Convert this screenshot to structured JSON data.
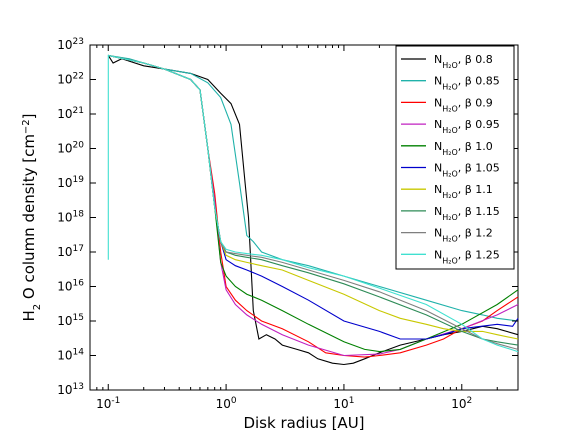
{
  "chart_data": {
    "type": "line",
    "xlabel": "Disk radius [AU]",
    "ylabel": "H2O column density [cm-2]",
    "x_scale": "log",
    "y_scale": "log",
    "xlim": [
      0.07,
      300
    ],
    "ylim": [
      10000000000000.0,
      1e+23
    ],
    "x_ticks": [
      {
        "value": 0.1,
        "base": "10",
        "exp": "-1"
      },
      {
        "value": 1,
        "base": "10",
        "exp": "0"
      },
      {
        "value": 10,
        "base": "10",
        "exp": "1"
      },
      {
        "value": 100,
        "base": "10",
        "exp": "2"
      }
    ],
    "y_ticks": [
      {
        "value": 10000000000000.0,
        "base": "10",
        "exp": "13"
      },
      {
        "value": 100000000000000.0,
        "base": "10",
        "exp": "14"
      },
      {
        "value": 1000000000000000.0,
        "base": "10",
        "exp": "15"
      },
      {
        "value": 1e+16,
        "base": "10",
        "exp": "16"
      },
      {
        "value": 1e+17,
        "base": "10",
        "exp": "17"
      },
      {
        "value": 1e+18,
        "base": "10",
        "exp": "18"
      },
      {
        "value": 1e+19,
        "base": "10",
        "exp": "19"
      },
      {
        "value": 1e+20,
        "base": "10",
        "exp": "20"
      },
      {
        "value": 1e+21,
        "base": "10",
        "exp": "21"
      },
      {
        "value": 1e+22,
        "base": "10",
        "exp": "22"
      },
      {
        "value": 1e+23,
        "base": "10",
        "exp": "23"
      }
    ],
    "legend_position": "top-right",
    "grid": false,
    "series": [
      {
        "name": "N_{H2O}, β 0.8",
        "label_main": "N",
        "label_sub": "H₂O",
        "label_tail": ", β 0.8",
        "color": "#000000",
        "x": [
          0.1,
          0.11,
          0.13,
          0.2,
          0.3,
          0.5,
          0.7,
          0.9,
          1.1,
          1.3,
          1.45,
          1.55,
          1.7,
          1.9,
          2.2,
          2.6,
          3,
          4,
          5,
          6,
          8,
          10,
          12,
          15,
          20,
          30,
          50,
          70,
          100,
          150,
          200,
          300
        ],
        "y": [
          5e+22,
          3e+22,
          4e+22,
          2.5e+22,
          2e+22,
          1.5e+22,
          1e+22,
          4e+21,
          2e+21,
          5e+20,
          1e+19,
          1e+18,
          2000000000000000.0,
          300000000000000.0,
          400000000000000.0,
          300000000000000.0,
          200000000000000.0,
          150000000000000.0,
          120000000000000.0,
          80000000000000.0,
          60000000000000.0,
          55000000000000.0,
          60000000000000.0,
          80000000000000.0,
          120000000000000.0,
          200000000000000.0,
          300000000000000.0,
          400000000000000.0,
          500000000000000.0,
          700000000000000.0,
          600000000000000.0,
          400000000000000.0
        ]
      },
      {
        "name": "N_{H2O}, β 0.85",
        "label_main": "N",
        "label_sub": "H₂O",
        "label_tail": ", β 0.85",
        "color": "#20b2aa",
        "x": [
          0.1,
          0.15,
          0.2,
          0.3,
          0.5,
          0.7,
          0.9,
          1.1,
          1.3,
          1.5,
          1.7,
          2,
          3,
          5,
          10,
          20,
          50,
          100,
          150,
          200,
          300
        ],
        "y": [
          5e+22,
          4e+22,
          3e+22,
          2e+22,
          1.5e+22,
          8e+21,
          3e+21,
          5e+20,
          1e+19,
          3e+17,
          2e+17,
          1e+17,
          6e+16,
          4e+16,
          2e+16,
          1e+16,
          4000000000000000.0,
          2000000000000000.0,
          1500000000000000.0,
          1200000000000000.0,
          1000000000000000.0
        ]
      },
      {
        "name": "N_{H2O}, β 0.9",
        "label_main": "N",
        "label_sub": "H₂O",
        "label_tail": ", β 0.9",
        "color": "#ff0000",
        "x": [
          0.1,
          0.2,
          0.3,
          0.5,
          0.6,
          0.7,
          0.8,
          0.9,
          1.0,
          1.2,
          1.5,
          2,
          3,
          5,
          7,
          10,
          15,
          20,
          30,
          50,
          70,
          100,
          150,
          200,
          300
        ],
        "y": [
          5e+22,
          3e+22,
          2e+22,
          1e+22,
          5e+21,
          1e+20,
          5e+18,
          1e+17,
          1e+16,
          4000000000000000.0,
          2000000000000000.0,
          1000000000000000.0,
          600000000000000.0,
          250000000000000.0,
          120000000000000.0,
          100000000000000.0,
          90000000000000.0,
          100000000000000.0,
          120000000000000.0,
          200000000000000.0,
          300000000000000.0,
          600000000000000.0,
          1000000000000000.0,
          2000000000000000.0,
          5000000000000000.0
        ]
      },
      {
        "name": "N_{H2O}, β 0.95",
        "label_main": "N",
        "label_sub": "H₂O",
        "label_tail": ", β 0.95",
        "color": "#c020c0",
        "x": [
          0.1,
          0.2,
          0.3,
          0.5,
          0.6,
          0.7,
          0.8,
          0.9,
          1.0,
          1.2,
          1.5,
          2,
          3,
          5,
          10,
          20,
          30,
          50,
          100,
          200,
          300
        ],
        "y": [
          5e+22,
          3e+22,
          2e+22,
          1e+22,
          5e+21,
          1e+20,
          3e+18,
          5e+16,
          8000000000000000.0,
          3000000000000000.0,
          1500000000000000.0,
          800000000000000.0,
          400000000000000.0,
          200000000000000.0,
          100000000000000.0,
          110000000000000.0,
          150000000000000.0,
          300000000000000.0,
          600000000000000.0,
          1500000000000000.0,
          3000000000000000.0
        ]
      },
      {
        "name": "N_{H2O}, β 1.0",
        "label_main": "N",
        "label_sub": "H₂O",
        "label_tail": ", β 1.0",
        "color": "#008000",
        "x": [
          0.1,
          0.2,
          0.3,
          0.5,
          0.6,
          0.7,
          0.8,
          0.9,
          1.0,
          1.2,
          1.5,
          2,
          3,
          5,
          10,
          15,
          20,
          30,
          50,
          100,
          200,
          300
        ],
        "y": [
          5e+22,
          3e+22,
          2e+22,
          1e+22,
          5e+21,
          1e+20,
          2e+18,
          5e+16,
          2e+16,
          1e+16,
          6000000000000000.0,
          4000000000000000.0,
          2000000000000000.0,
          800000000000000.0,
          250000000000000.0,
          150000000000000.0,
          130000000000000.0,
          150000000000000.0,
          300000000000000.0,
          800000000000000.0,
          3000000000000000.0,
          8000000000000000.0
        ]
      },
      {
        "name": "N_{H2O}, β 1.05",
        "label_main": "N",
        "label_sub": "H₂O",
        "label_tail": ", β 1.05",
        "color": "#0000cc",
        "x": [
          0.1,
          0.2,
          0.3,
          0.5,
          0.6,
          0.7,
          0.8,
          0.9,
          1.0,
          1.2,
          1.5,
          2,
          3,
          5,
          10,
          20,
          30,
          50,
          70,
          100,
          200,
          270,
          300
        ],
        "y": [
          5e+22,
          3e+22,
          2e+22,
          1e+22,
          5e+21,
          1e+20,
          2e+18,
          2e+17,
          6e+16,
          4e+16,
          3e+16,
          2e+16,
          1e+16,
          4000000000000000.0,
          1000000000000000.0,
          500000000000000.0,
          300000000000000.0,
          300000000000000.0,
          400000000000000.0,
          600000000000000.0,
          800000000000000.0,
          700000000000000.0,
          1200000000000000.0
        ]
      },
      {
        "name": "N_{H2O}, β 1.1",
        "label_main": "N",
        "label_sub": "H₂O",
        "label_tail": ", β 1.1",
        "color": "#c8c800",
        "x": [
          0.1,
          0.2,
          0.3,
          0.5,
          0.6,
          0.7,
          0.8,
          0.9,
          1.0,
          1.2,
          1.5,
          2,
          3,
          5,
          10,
          20,
          30,
          50,
          70,
          100,
          150,
          200,
          300
        ],
        "y": [
          5e+22,
          3e+22,
          2e+22,
          1e+22,
          5e+21,
          1e+20,
          2e+18,
          2e+17,
          8e+16,
          6e+16,
          5e+16,
          4e+16,
          3e+16,
          1.5e+16,
          6000000000000000.0,
          2000000000000000.0,
          1200000000000000.0,
          800000000000000.0,
          600000000000000.0,
          500000000000000.0,
          500000000000000.0,
          400000000000000.0,
          300000000000000.0
        ]
      },
      {
        "name": "N_{H2O}, β 1.15",
        "label_main": "N",
        "label_sub": "H₂O",
        "label_tail": ", β 1.15",
        "color": "#2e8b57",
        "x": [
          0.1,
          0.2,
          0.3,
          0.5,
          0.6,
          0.7,
          0.8,
          0.9,
          1.0,
          1.2,
          1.5,
          2,
          3,
          5,
          10,
          20,
          50,
          100,
          150,
          200,
          300
        ],
        "y": [
          5e+22,
          3e+22,
          2e+22,
          1e+22,
          5e+21,
          1e+20,
          2e+18,
          2e+17,
          1e+17,
          8e+16,
          7e+16,
          6e+16,
          4e+16,
          2.5e+16,
          1.2e+16,
          5000000000000000.0,
          1500000000000000.0,
          500000000000000.0,
          300000000000000.0,
          250000000000000.0,
          200000000000000.0
        ]
      },
      {
        "name": "N_{H2O}, β 1.2",
        "label_main": "N",
        "label_sub": "H₂O",
        "label_tail": ", β 1.2",
        "color": "#7f7f7f",
        "x": [
          0.1,
          0.2,
          0.3,
          0.5,
          0.6,
          0.7,
          0.8,
          0.9,
          1.0,
          1.2,
          1.5,
          2,
          3,
          5,
          10,
          20,
          50,
          100,
          150,
          200,
          300
        ],
        "y": [
          5e+22,
          3e+22,
          2e+22,
          1e+22,
          5e+21,
          1e+20,
          2e+18,
          2e+17,
          1e+17,
          9e+16,
          8e+16,
          7e+16,
          5e+16,
          3e+16,
          1.5e+16,
          7000000000000000.0,
          2000000000000000.0,
          600000000000000.0,
          300000000000000.0,
          220000000000000.0,
          150000000000000.0
        ]
      },
      {
        "name": "N_{H2O}, β 1.25",
        "label_main": "N",
        "label_sub": "H₂O",
        "label_tail": ", β 1.25",
        "color": "#40e0d0",
        "x": [
          0.1,
          0.1,
          0.1,
          0.2,
          0.3,
          0.5,
          0.6,
          0.7,
          0.8,
          0.9,
          1.0,
          1.2,
          1.5,
          2,
          3,
          5,
          10,
          20,
          50,
          100,
          150,
          200,
          300
        ],
        "y": [
          6e+16,
          5e+22,
          5e+22,
          3e+22,
          2e+22,
          1e+22,
          5e+21,
          1e+20,
          2e+18,
          2e+17,
          1.2e+17,
          1e+17,
          9e+16,
          8e+16,
          6e+16,
          3.5e+16,
          2e+16,
          9000000000000000.0,
          3000000000000000.0,
          800000000000000.0,
          300000000000000.0,
          200000000000000.0,
          130000000000000.0
        ]
      }
    ]
  }
}
